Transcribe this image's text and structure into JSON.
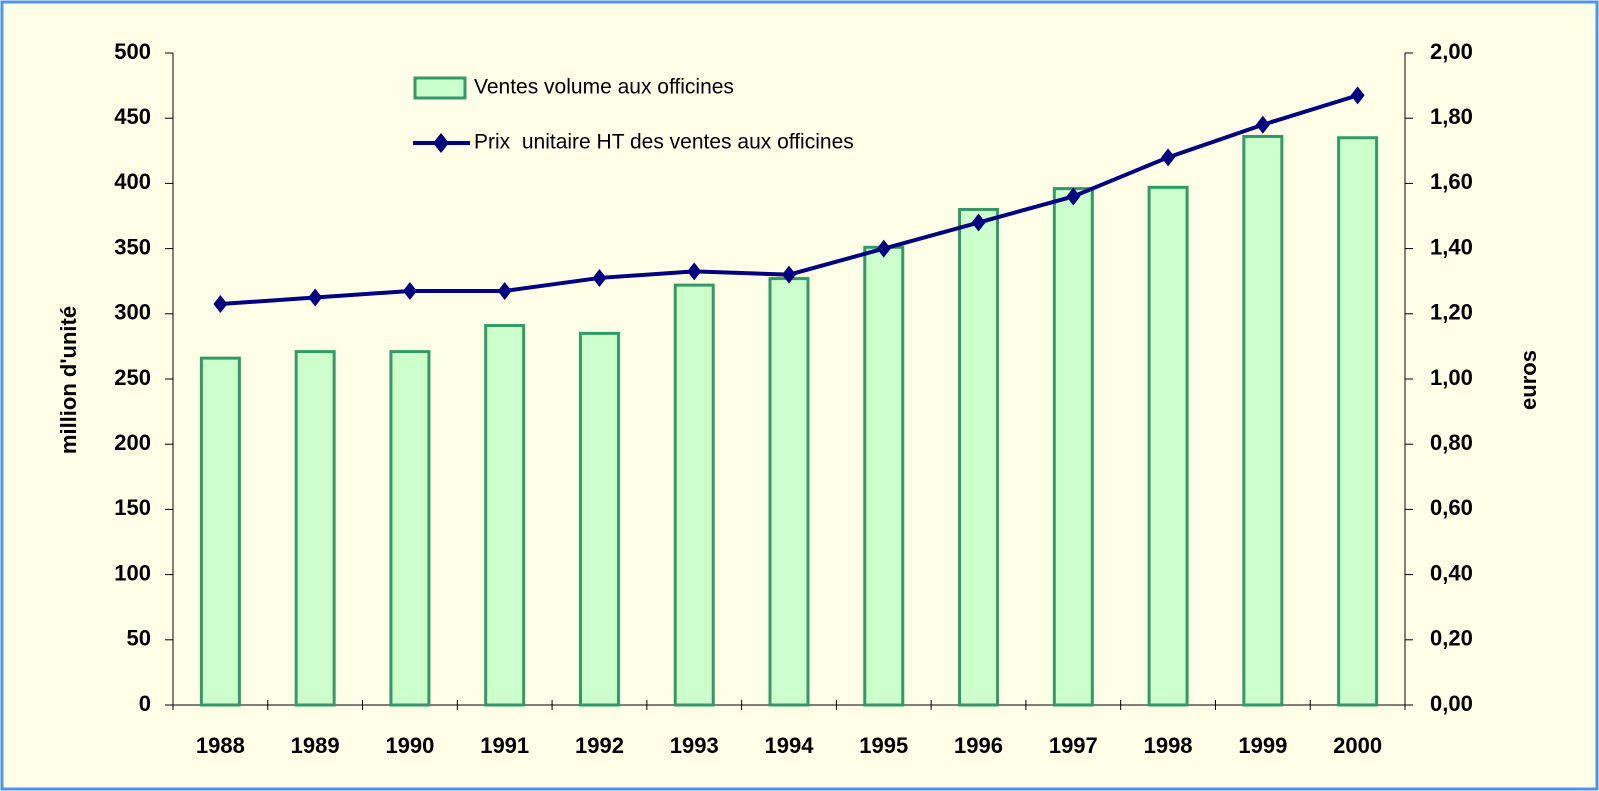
{
  "chart_data": {
    "type": "bar",
    "categories": [
      "1988",
      "1989",
      "1990",
      "1991",
      "1992",
      "1993",
      "1994",
      "1995",
      "1996",
      "1997",
      "1998",
      "1999",
      "2000"
    ],
    "series": [
      {
        "name": "Ventes volume aux officines",
        "type": "bar",
        "color": "#ccffcc",
        "values": [
          266,
          271,
          271,
          291,
          285,
          322,
          327,
          351,
          380,
          396,
          397,
          436,
          435
        ]
      },
      {
        "name": "Prix  unitaire HT des ventes aux officines",
        "type": "line",
        "axis": "y2",
        "color": "#000080",
        "values": [
          1.23,
          1.25,
          1.27,
          1.27,
          1.31,
          1.33,
          1.32,
          1.4,
          1.48,
          1.56,
          1.68,
          1.78,
          1.87
        ]
      }
    ],
    "ylabel": "million d'unité",
    "y2label": "euros",
    "ylim": [
      0,
      500
    ],
    "yticks": [
      0,
      50,
      100,
      150,
      200,
      250,
      300,
      350,
      400,
      450,
      500
    ],
    "y2lim": [
      0,
      2
    ],
    "y2ticks": [
      {
        "value": 0,
        "label": "0,00"
      },
      {
        "value": 0.2,
        "label": "0,20"
      },
      {
        "value": 0.4,
        "label": "0,40"
      },
      {
        "value": 0.6,
        "label": "0,60"
      },
      {
        "value": 0.8,
        "label": "0,80"
      },
      {
        "value": 1,
        "label": "1,00"
      },
      {
        "value": 1.2,
        "label": "1,20"
      },
      {
        "value": 1.4,
        "label": "1,40"
      },
      {
        "value": 1.6,
        "label": "1,60"
      },
      {
        "value": 1.8,
        "label": "1,80"
      },
      {
        "value": 2,
        "label": "2,00"
      }
    ],
    "legend": "top",
    "grid": false
  }
}
